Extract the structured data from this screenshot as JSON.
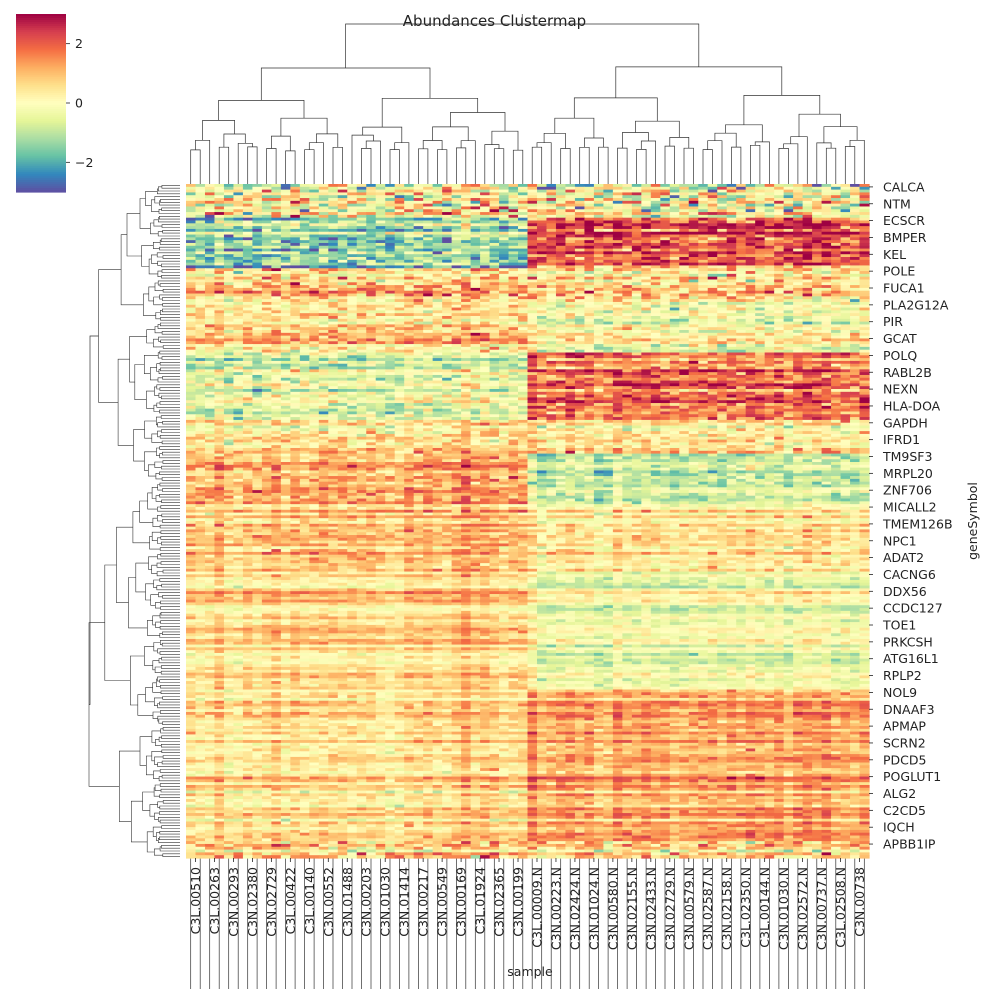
{
  "chart_data": {
    "type": "heatmap",
    "title": "Abundances Clustermap",
    "xlabel": "sample",
    "ylabel": "geneSymbol",
    "colormap": "Spectral_r",
    "colorbar": {
      "ticks": [
        2,
        0,
        -2
      ],
      "tick_labels": [
        "2",
        "0",
        "−2"
      ],
      "range": [
        -3,
        3
      ]
    },
    "x_tick_labels": [
      "C3L.00510",
      "C3L.00263",
      "C3N.00293",
      "C3N.02380",
      "C3N.02729",
      "C3L.00422",
      "C3L.00140",
      "C3N.00552",
      "C3N.01488",
      "C3N.00203",
      "C3N.01030",
      "C3N.01414",
      "C3N.00217",
      "C3N.00549",
      "C3N.00169",
      "C3L.01924",
      "C3N.02365",
      "C3N.00199",
      "C3L.00009.N",
      "C3N.00223.N",
      "C3N.02424.N",
      "C3N.01024.N",
      "C3N.00580.N",
      "C3N.02155.N",
      "C3N.02433.N",
      "C3N.02729.N",
      "C3N.00579.N",
      "C3N.02587.N",
      "C3N.02158.N",
      "C3L.02350.N",
      "C3L.00144.N",
      "C3N.01030.N",
      "C3N.02572.N",
      "C3N.00737.N",
      "C3L.02508.N",
      "C3N.00738"
    ],
    "y_tick_labels": [
      "CALCA",
      "NTM",
      "ECSCR",
      "BMPER",
      "KEL",
      "POLE",
      "FUCA1",
      "PLA2G12A",
      "PIR",
      "GCAT",
      "POLQ",
      "RABL2B",
      "NEXN",
      "HLA-DOA",
      "GAPDH",
      "IFRD1",
      "TM9SF3",
      "MRPL20",
      "ZNF706",
      "MICALL2",
      "TMEM126B",
      "NPC1",
      "ADAT2",
      "CACNG6",
      "DDX56",
      "CCDC127",
      "TOE1",
      "PRKCSH",
      "ATG16L1",
      "RPLP2",
      "NOL9",
      "DNAAF3",
      "APMAP",
      "SCRN2",
      "PDCD5",
      "POGLUT1",
      "ALG2",
      "C2CD5",
      "IQCH",
      "APBB1IP"
    ],
    "n_samples": 72,
    "split_column": 36,
    "row_blocks": [
      {
        "tick_range": [
          "CALCA",
          "NTM"
        ],
        "left_mean": 0.2,
        "right_mean": 0.1,
        "noise": 1.9
      },
      {
        "tick_range": [
          "ECSCR",
          "KEL"
        ],
        "left_mean": -1.3,
        "right_mean": 2.1,
        "noise": 1.1
      },
      {
        "tick_range": [
          "POLE",
          "FUCA1"
        ],
        "left_mean": 0.6,
        "right_mean": 0.4,
        "noise": 1.2
      },
      {
        "tick_range": [
          "PLA2G12A",
          "GCAT"
        ],
        "left_mean": 0.4,
        "right_mean": -0.3,
        "noise": 0.9
      },
      {
        "tick_range": [
          "POLQ",
          "HLA-DOA"
        ],
        "left_mean": -0.4,
        "right_mean": 1.9,
        "noise": 0.9
      },
      {
        "tick_range": [
          "GAPDH",
          "IFRD1"
        ],
        "left_mean": 0.5,
        "right_mean": 0.5,
        "noise": 0.9
      },
      {
        "tick_range": [
          "TM9SF3",
          "ZNF706"
        ],
        "left_mean": 1.1,
        "right_mean": -0.9,
        "noise": 0.7
      },
      {
        "tick_range": [
          "MICALL2",
          "ADAT2"
        ],
        "left_mean": 0.7,
        "right_mean": 0.2,
        "noise": 0.6
      },
      {
        "tick_range": [
          "CACNG6",
          "RPLP2"
        ],
        "left_mean": 0.6,
        "right_mean": -0.3,
        "noise": 0.4
      },
      {
        "tick_range": [
          "NOL9",
          "IQCH"
        ],
        "left_mean": 0.5,
        "right_mean": 1.2,
        "noise": 0.5
      },
      {
        "tick_range": [
          "APBB1IP"
        ],
        "left_mean": 0.7,
        "right_mean": 0.5,
        "noise": 1.2
      }
    ]
  }
}
